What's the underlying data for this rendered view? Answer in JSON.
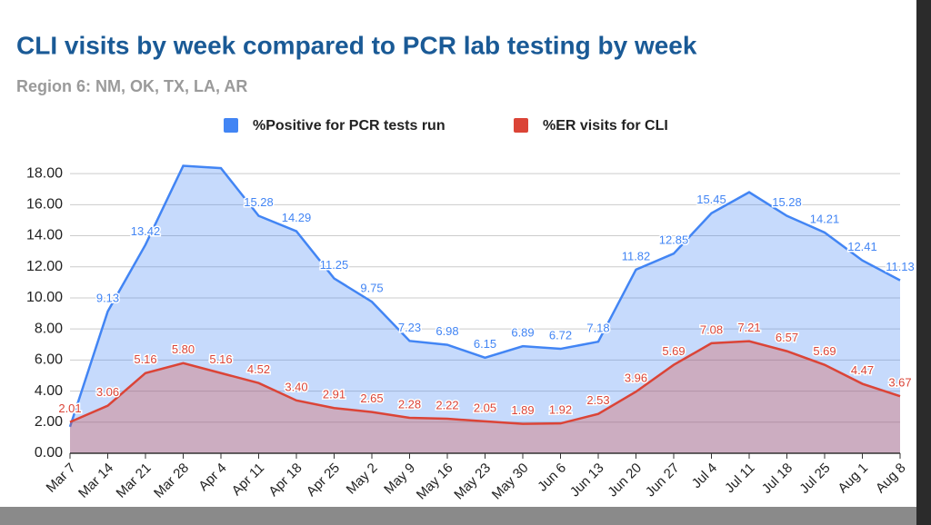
{
  "chart_data": {
    "type": "area",
    "title": "CLI visits by week compared to PCR lab testing by week",
    "subtitle": "Region 6: NM, OK, TX, LA, AR",
    "categories": [
      "Mar 7",
      "Mar 14",
      "Mar 21",
      "Mar 28",
      "Apr 4",
      "Apr 11",
      "Apr 18",
      "Apr 25",
      "May 2",
      "May 9",
      "May 16",
      "May 23",
      "May 30",
      "Jun 6",
      "Jun 13",
      "Jun 20",
      "Jun 27",
      "Jul 4",
      "Jul 11",
      "Jul 18",
      "Jul 25",
      "Aug 1",
      "Aug 8"
    ],
    "series": [
      {
        "name": "%Positive for PCR tests run",
        "color": "#4285f4",
        "values": [
          1.7,
          9.13,
          13.42,
          18.5,
          18.35,
          15.28,
          14.29,
          11.25,
          9.75,
          7.23,
          6.98,
          6.15,
          6.89,
          6.72,
          7.18,
          11.82,
          12.85,
          15.45,
          16.8,
          15.28,
          14.21,
          12.41,
          11.13
        ],
        "value_labels": [
          null,
          "9.13",
          "13.42",
          null,
          null,
          "15.28",
          "14.29",
          "11.25",
          "9.75",
          "7.23",
          "6.98",
          "6.15",
          "6.89",
          "6.72",
          "7.18",
          "11.82",
          "12.85",
          "15.45",
          null,
          "15.28",
          "14.21",
          "12.41",
          "11.13"
        ]
      },
      {
        "name": "%ER visits for CLI",
        "color": "#db4437",
        "values": [
          2.01,
          3.06,
          5.16,
          5.8,
          5.16,
          4.52,
          3.4,
          2.91,
          2.65,
          2.28,
          2.22,
          2.05,
          1.89,
          1.92,
          2.53,
          3.96,
          5.69,
          7.08,
          7.21,
          6.57,
          5.69,
          4.47,
          3.67
        ],
        "value_labels": [
          "2.01",
          "3.06",
          "5.16",
          "5.80",
          "5.16",
          "4.52",
          "3.40",
          "2.91",
          "2.65",
          "2.28",
          "2.22",
          "2.05",
          "1.89",
          "1.92",
          "2.53",
          "3.96",
          "5.69",
          "7.08",
          "7.21",
          "6.57",
          "5.69",
          "4.47",
          "3.67"
        ]
      }
    ],
    "ylim": [
      0,
      19
    ],
    "yticks": [
      {
        "value": 0,
        "label": "0.00"
      },
      {
        "value": 2,
        "label": "2.00"
      },
      {
        "value": 4,
        "label": "4.00"
      },
      {
        "value": 6,
        "label": "6.00"
      },
      {
        "value": 8,
        "label": "8.00"
      },
      {
        "value": 10,
        "label": "10.00"
      },
      {
        "value": 12,
        "label": "12.00"
      },
      {
        "value": 14,
        "label": "14.00"
      },
      {
        "value": 16,
        "label": "16.00"
      },
      {
        "value": 18,
        "label": "18.00"
      }
    ],
    "grid": true
  }
}
